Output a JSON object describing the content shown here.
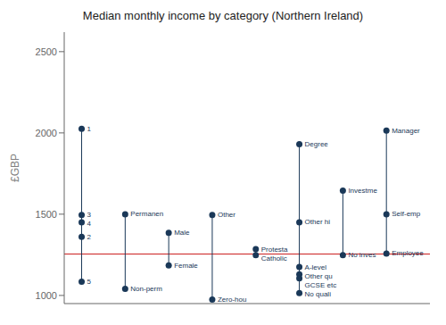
{
  "chart_data": {
    "type": "scatter",
    "title": "Median monthly income by category (Northern Ireland)",
    "y_label": "£GBP",
    "categories": [
      null,
      null,
      null,
      null,
      null,
      null,
      null,
      null
    ],
    "values": [
      [
        2025,
        1495,
        1450,
        1360,
        1085
      ],
      [
        1500,
        1040
      ],
      [
        1385,
        1185
      ],
      [
        1495,
        975
      ],
      [
        1285,
        1248
      ],
      [
        1930,
        1450,
        1175,
        1130,
        1105,
        1015
      ],
      [
        1645,
        1248
      ],
      [
        2015,
        1500,
        1258
      ]
    ],
    "value_labels": [
      [
        "1",
        "3",
        "4",
        "2",
        "5"
      ],
      [
        "Permanen",
        "Non-perm"
      ],
      [
        "Male",
        "Female"
      ],
      [
        "Other",
        "Zero-hou"
      ],
      [
        "Protesta",
        "Catholic"
      ],
      [
        "Degree",
        "Other hi",
        "A-level",
        "Other qu",
        "GCSE etc",
        "No quali"
      ],
      [
        "Investme",
        "No inves"
      ],
      [
        "Manager",
        "Self-emp",
        "Employee"
      ]
    ],
    "data_labels": true,
    "color": "#1a3858",
    "ylim": [
      950,
      2620
    ],
    "yticks": [
      1000,
      1500,
      2000,
      2500
    ],
    "grid": false,
    "tick_labels": "y",
    "reference_line": {
      "value": 1255,
      "color": "#cc2222"
    }
  }
}
